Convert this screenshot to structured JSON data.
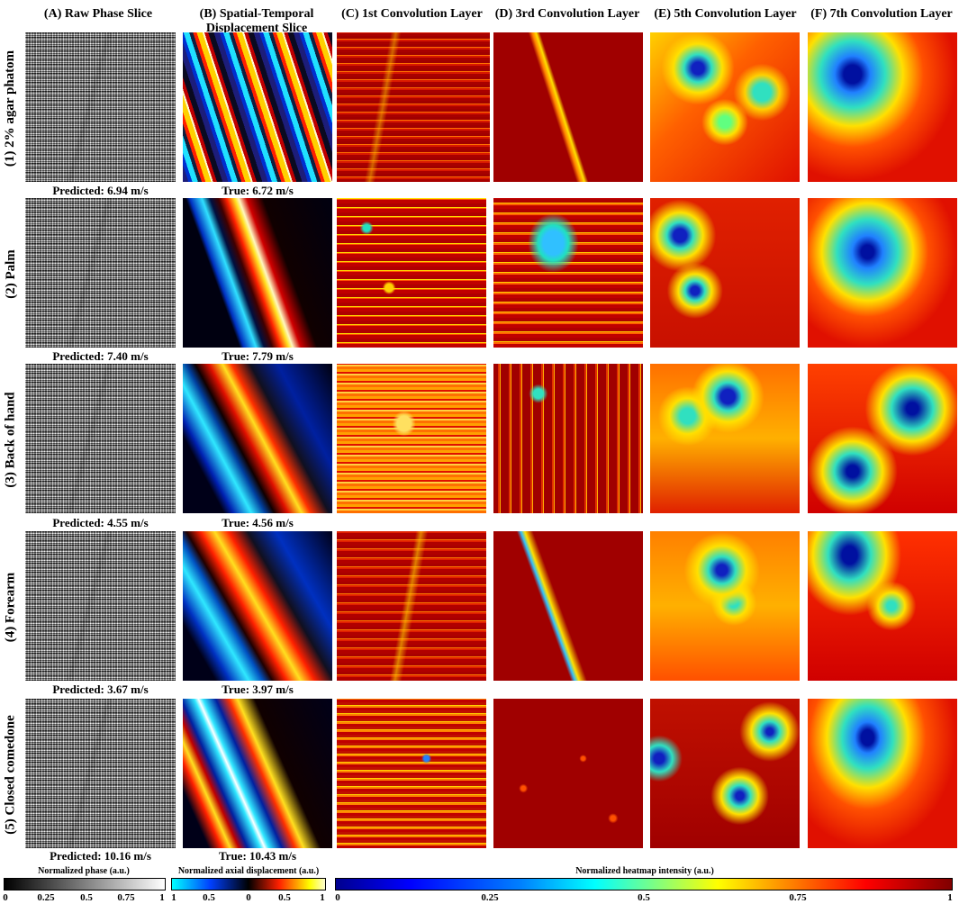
{
  "columns": [
    "(A) Raw Phase Slice",
    "(B) Spatial-Temporal\nDisplacement Slice",
    "(C) 1st Convolution Layer",
    "(D) 3rd Convolution Layer",
    "(E) 5th Convolution Layer",
    "(F) 7th Convolution Layer"
  ],
  "rows": [
    {
      "label": "(1) 2% agar phatom",
      "predicted": "Predicted: 6.94 m/s",
      "true": "True: 6.72 m/s"
    },
    {
      "label": "(2) Palm",
      "predicted": "Predicted: 7.40 m/s",
      "true": "True: 7.79 m/s"
    },
    {
      "label": "(3) Back of hand",
      "predicted": "Predicted: 4.55 m/s",
      "true": "True: 4.56 m/s"
    },
    {
      "label": "(4) Forearm",
      "predicted": "Predicted: 3.67 m/s",
      "true": "True: 3.97 m/s"
    },
    {
      "label": "(5) Closed comedone",
      "predicted": "Predicted: 10.16 m/s",
      "true": "True: 10.43 m/s"
    }
  ],
  "colorbars": {
    "phase": {
      "title": "Normalized phase (a.u.)",
      "ticks": [
        "0",
        "0.25",
        "0.5",
        "0.75",
        "1"
      ]
    },
    "displacement": {
      "title": "Normalized axial displacement (a.u.)",
      "ticks": [
        "1",
        "0.5",
        "0",
        "0.5",
        "1"
      ]
    },
    "heatmap": {
      "title": "Normalized heatmap intensity (a.u.)",
      "ticks": [
        "0",
        "0.25",
        "0.5",
        "0.75",
        "1"
      ]
    }
  }
}
